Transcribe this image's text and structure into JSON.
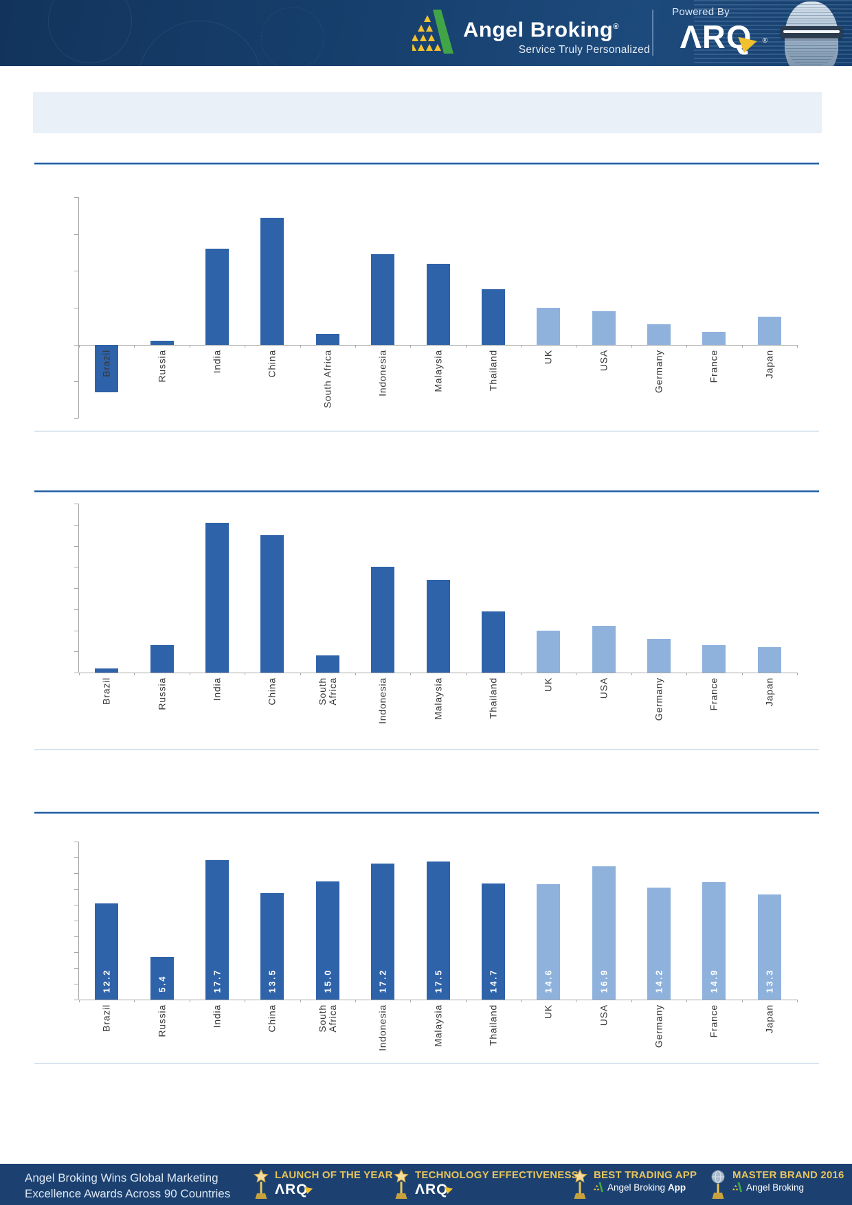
{
  "header": {
    "brand": "Angel Broking",
    "brand_reg": "®",
    "tagline": "Service Truly Personalized",
    "powered_by": "Powered By",
    "arq_logo": "ARQ",
    "arq_reg": "®"
  },
  "chart_data": [
    {
      "type": "bar",
      "title": "",
      "categories": [
        "Brazil",
        "Russia",
        "India",
        "China",
        "South Africa",
        "Indonesia",
        "Malaysia",
        "Thailand",
        "UK",
        "USA",
        "Germany",
        "France",
        "Japan"
      ],
      "values": [
        -2.6,
        0.2,
        5.2,
        6.9,
        0.6,
        4.9,
        4.4,
        3.0,
        2.0,
        1.8,
        1.1,
        0.7,
        1.5
      ],
      "ylim": [
        -4,
        8
      ],
      "ytick_step": 2,
      "grid": false,
      "legend": null,
      "bar_colors": {
        "emerging": "#2e62a9",
        "developed": "#8fb2dd"
      },
      "light_from_index": 8
    },
    {
      "type": "bar",
      "title": "",
      "categories": [
        "Brazil",
        "Russia",
        "India",
        "China",
        "South Africa",
        "Indonesia",
        "Malaysia",
        "Thailand",
        "UK",
        "USA",
        "Germany",
        "France",
        "Japan"
      ],
      "values": [
        0.2,
        1.3,
        7.1,
        6.5,
        0.8,
        5.0,
        4.4,
        2.9,
        2.0,
        2.2,
        1.6,
        1.3,
        1.2
      ],
      "ylim": [
        0,
        8
      ],
      "ytick_step": 1,
      "grid": false,
      "legend": null,
      "bar_colors": {
        "emerging": "#2e62a9",
        "developed": "#8fb2dd"
      },
      "light_from_index": 8
    },
    {
      "type": "bar",
      "title": "",
      "categories": [
        "Brazil",
        "Russia",
        "India",
        "China",
        "South Africa",
        "Indonesia",
        "Malaysia",
        "Thailand",
        "UK",
        "USA",
        "Germany",
        "France",
        "Japan"
      ],
      "values": [
        12.2,
        5.4,
        17.7,
        13.5,
        15.0,
        17.2,
        17.5,
        14.7,
        14.6,
        16.9,
        14.2,
        14.9,
        13.3
      ],
      "value_labels": [
        "12.2",
        "5.4",
        "17.7",
        "13.5",
        "15.0",
        "17.2",
        "17.5",
        "14.7",
        "14.6",
        "16.9",
        "14.2",
        "14.9",
        "13.3"
      ],
      "ylim": [
        0,
        20
      ],
      "ytick_step": 2,
      "grid": false,
      "legend": null,
      "bar_colors": {
        "emerging": "#2e62a9",
        "developed": "#8fb2dd"
      },
      "light_from_index": 8
    }
  ],
  "footer": {
    "headline_line1": "Angel Broking Wins Global Marketing",
    "headline_line2": "Excellence Awards Across 90 Countries",
    "awards": [
      {
        "title": "LAUNCH OF THE YEAR",
        "subtitle": "ARQ"
      },
      {
        "title": "TECHNOLOGY EFFECTIVENESS",
        "subtitle": "ARQ"
      },
      {
        "title": "BEST TRADING APP",
        "subtitle": "Angel Broking",
        "subtitle_bold": "App"
      },
      {
        "title": "MASTER BRAND 2016",
        "subtitle": "Angel Broking",
        "subtitle_bold": ""
      }
    ]
  },
  "colors": {
    "header_bg": "#17406e",
    "banner_bg": "#e9f0f7",
    "rule_dark": "#2b5f9f",
    "rule_light": "#a8c6dc",
    "bar_dark": "#2e62a9",
    "bar_light": "#8fb2dd",
    "axis_grey": "#a6a6a6",
    "footer_bg": "#1c4170",
    "gold": "#e5c35c",
    "logo_green": "#41a548",
    "logo_yellow": "#f2c230"
  }
}
